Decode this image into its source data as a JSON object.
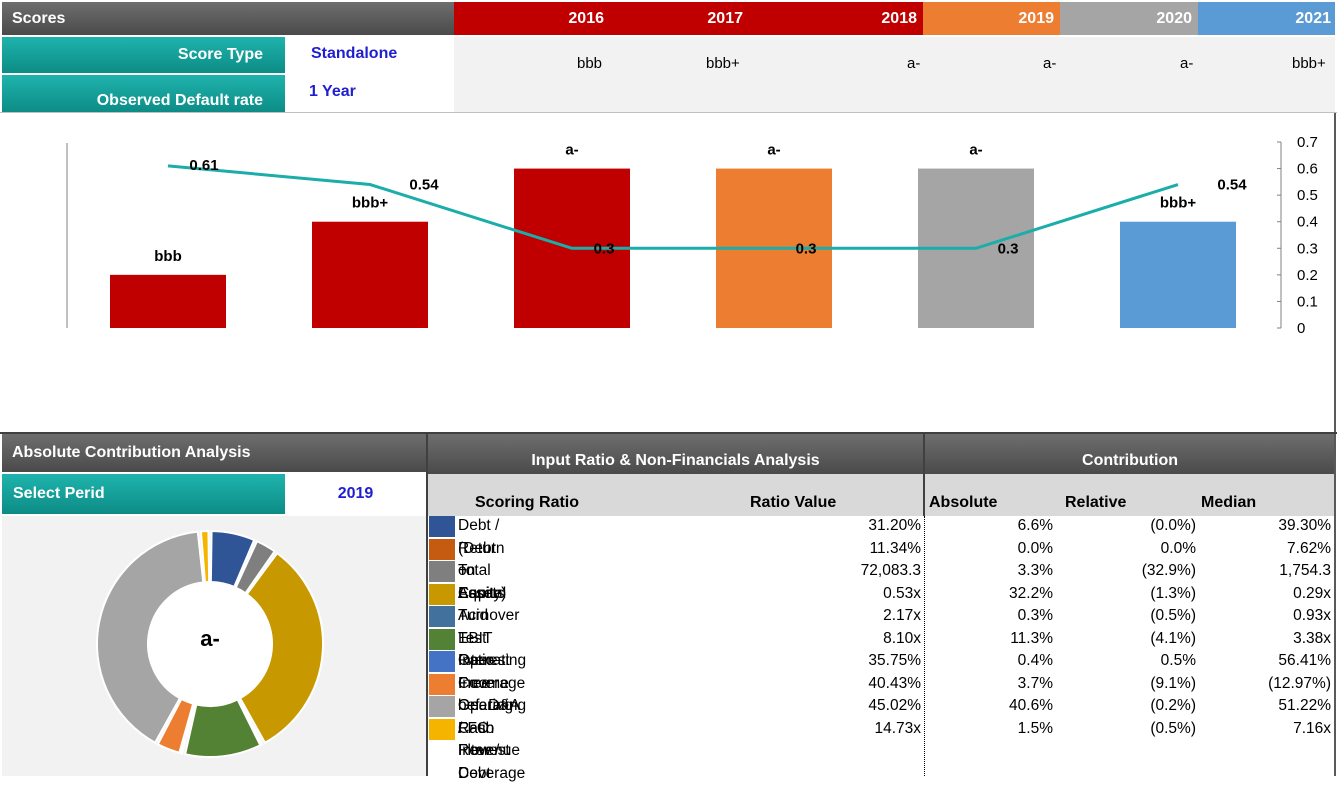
{
  "header": {
    "title": "Scores",
    "years": [
      {
        "label": "2016",
        "color": "#c00000"
      },
      {
        "label": "2017",
        "color": "#c00000"
      },
      {
        "label": "2018",
        "color": "#c00000"
      },
      {
        "label": "2019",
        "color": "#ed7d31"
      },
      {
        "label": "2020",
        "color": "#a5a5a5"
      },
      {
        "label": "2021",
        "color": "#5b9bd5"
      }
    ]
  },
  "settings": {
    "score_type_label": "Score Type",
    "score_type_value": "Standalone",
    "default_rate_label": "Observed Default rate",
    "default_rate_value": "1 Year"
  },
  "scores": [
    "bbb",
    "bbb+",
    "a-",
    "a-",
    "a-",
    "bbb+"
  ],
  "chart_data": {
    "type": "bar",
    "categories": [
      "2016",
      "2017",
      "2018",
      "2019",
      "2020",
      "2021"
    ],
    "series": [
      {
        "values": [
          0.2,
          0.4,
          0.6,
          0.6,
          0.6,
          0.4
        ],
        "labels": [
          "bbb",
          "bbb+",
          "a-",
          "a-",
          "a-",
          "bbb+"
        ]
      },
      {
        "type": "line",
        "values": [
          0.61,
          0.54,
          0.3,
          0.3,
          0.3,
          0.54
        ],
        "labels": [
          "0.61",
          "0.54",
          "0.3",
          "0.3",
          "0.3",
          "0.54"
        ],
        "color": "#1aadaa"
      }
    ],
    "bar_colors": [
      "#c00000",
      "#c00000",
      "#c00000",
      "#ed7d31",
      "#a5a5a5",
      "#5b9bd5"
    ],
    "ylim": [
      0,
      0.7
    ],
    "yticks": [
      "0.7",
      "0.6",
      "0.5",
      "0.4",
      "0.3",
      "0.2",
      "0.1",
      "0"
    ],
    "secondary_axis": "right",
    "grid": false
  },
  "contribution": {
    "title": "Absolute Contribution Analysis",
    "select_label": "Select Perid",
    "select_value": "2019",
    "center_label": "a-"
  },
  "ratio_analysis": {
    "title": "Input Ratio & Non-Financials Analysis",
    "col_scoring": "Scoring Ratio",
    "col_value": "Ratio Value"
  },
  "contrib_header": {
    "title": "Contribution",
    "col_absolute": "Absolute",
    "col_relative": "Relative",
    "col_median": "Median"
  },
  "rows": [
    {
      "name": "Debt / (Debt + Equity)",
      "value": "31.20%",
      "absolute": "6.6%",
      "relative": "(0.0%)",
      "median": "39.30%",
      "color": "#2f5597"
    },
    {
      "name": "Return on Capital",
      "value": "11.34%",
      "absolute": "0.0%",
      "relative": "0.0%",
      "median": "7.62%",
      "color": "#c55a11"
    },
    {
      "name": "Total Assets",
      "value": "72,083.3",
      "absolute": "3.3%",
      "relative": "(32.9%)",
      "median": "1,754.3",
      "color": "#7f7f7f"
    },
    {
      "name": "Asset Turnover",
      "value": "0.53x",
      "absolute": "32.2%",
      "relative": "(1.3%)",
      "median": "0.29x",
      "color": "#c89800"
    },
    {
      "name": "Acid Test Ratio",
      "value": "2.17x",
      "absolute": "0.3%",
      "relative": "(0.5%)",
      "median": "0.93x",
      "color": "#41719c"
    },
    {
      "name": "EBIT Interest Coverage",
      "value": "8.10x",
      "absolute": "11.3%",
      "relative": "(4.1%)",
      "median": "3.38x",
      "color": "#548235"
    },
    {
      "name": "Operating Income bef. D&A / Revenue",
      "value": "35.75%",
      "absolute": "0.4%",
      "relative": "0.5%",
      "median": "56.41%",
      "color": "#4472c4"
    },
    {
      "name": "Free Operating Cash Flow / Debt",
      "value": "40.43%",
      "absolute": "3.7%",
      "relative": "(9.1%)",
      "median": "(12.97%)",
      "color": "#ed7d31"
    },
    {
      "name": "Gearing Ratio",
      "value": "45.02%",
      "absolute": "40.6%",
      "relative": "(0.2%)",
      "median": "51.22%",
      "color": "#a5a5a5"
    },
    {
      "name": "FFO Interest Coverage",
      "value": "14.73x",
      "absolute": "1.5%",
      "relative": "(0.5%)",
      "median": "7.16x",
      "color": "#f4b400"
    }
  ],
  "donut_data": {
    "type": "pie",
    "values": [
      6.6,
      0.0,
      3.3,
      32.2,
      0.3,
      11.3,
      0.4,
      3.7,
      40.6,
      1.5
    ]
  }
}
